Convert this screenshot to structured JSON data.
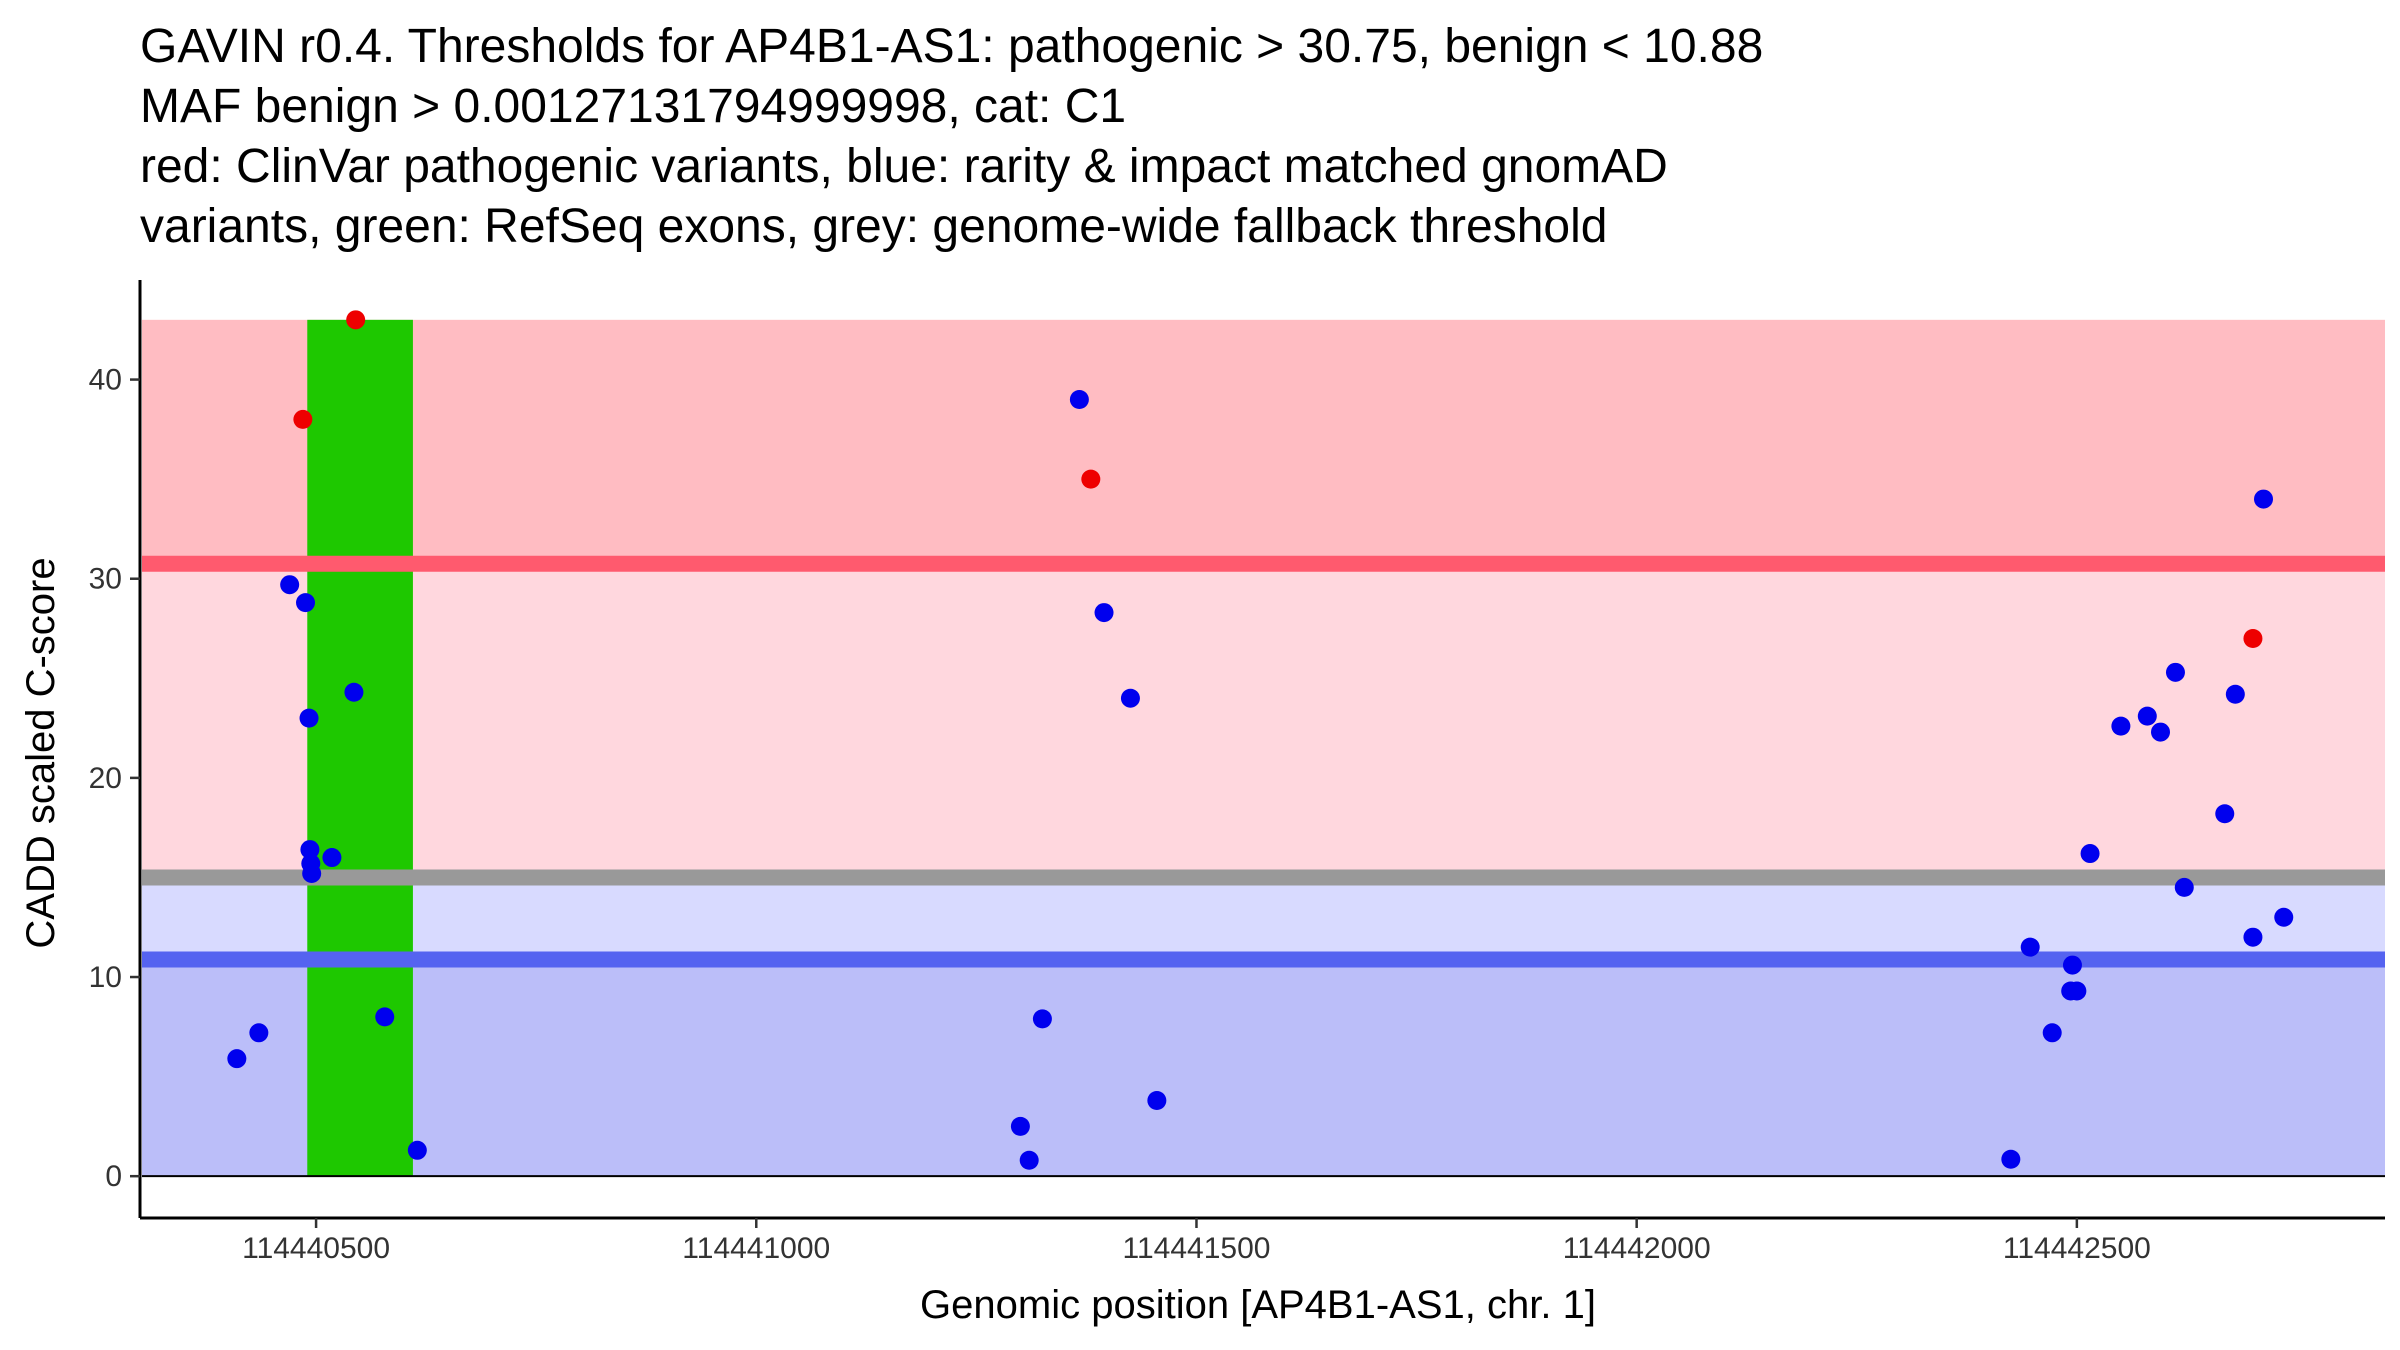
{
  "chart_data": {
    "type": "scatter",
    "title_lines": [
      "GAVIN r0.4. Thresholds for AP4B1-AS1: pathogenic > 30.75, benign < 10.88",
      "MAF benign > 0.00127131794999998, cat: C1",
      "red: ClinVar pathogenic variants, blue: rarity & impact matched gnomAD",
      "variants, green: RefSeq exons, grey: genome-wide fallback threshold"
    ],
    "xlabel": "Genomic position [AP4B1-AS1, chr. 1]",
    "ylabel": "CADD scaled C-score",
    "xlim": [
      114440300,
      114442850
    ],
    "ylim": [
      -2.1,
      45
    ],
    "x_ticks": [
      114440500,
      114441000,
      114441500,
      114442000,
      114442500
    ],
    "x_tick_labels": [
      "114440500",
      "114441000",
      "114441500",
      "114442000",
      "114442500"
    ],
    "y_ticks": [
      0,
      10,
      20,
      30,
      40
    ],
    "y_tick_labels": [
      "0",
      "10",
      "20",
      "30",
      "40"
    ],
    "grid": false,
    "thresholds": {
      "pathogenic": 30.75,
      "benign": 10.88,
      "genome_wide_fallback": 15
    },
    "regions": [
      {
        "name": "pathogenic-zone",
        "y0": 30.75,
        "y1": 43,
        "color": "#ffbcc2"
      },
      {
        "name": "uncertain-upper-zone",
        "y0": 15,
        "y1": 30.75,
        "color": "#ffd7de"
      },
      {
        "name": "uncertain-lower-zone",
        "y0": 10.88,
        "y1": 15,
        "color": "#d8daff"
      },
      {
        "name": "benign-zone",
        "y0": 0,
        "y1": 10.88,
        "color": "#bbbef9"
      }
    ],
    "threshold_lines": [
      {
        "name": "pathogenic-threshold-line",
        "y": 30.75,
        "color": "#ff5a6e"
      },
      {
        "name": "fallback-threshold-line",
        "y": 15,
        "color": "#999999"
      },
      {
        "name": "benign-threshold-line",
        "y": 10.88,
        "color": "#5563f0"
      }
    ],
    "exons": [
      {
        "start": 114440490,
        "end": 114440610,
        "color": "#1ec800"
      }
    ],
    "series": [
      {
        "name": "ClinVar pathogenic variants",
        "color": "#ee0000",
        "x": [
          114440485,
          114440545,
          114441380,
          114442700
        ],
        "y": [
          38,
          43,
          35,
          27
        ]
      },
      {
        "name": "rarity & impact matched gnomAD variants",
        "color": "#0000ee",
        "x": [
          114440410,
          114440435,
          114440470,
          114440488,
          114440492,
          114440493,
          114440494,
          114440495,
          114440518,
          114440543,
          114440578,
          114440615,
          114441300,
          114441310,
          114441325,
          114441367,
          114441395,
          114441425,
          114441455,
          114442425,
          114442447,
          114442472,
          114442493,
          114442495,
          114442500,
          114442515,
          114442550,
          114442580,
          114442595,
          114442612,
          114442622,
          114442668,
          114442680,
          114442700,
          114442712,
          114442735
        ],
        "y": [
          5.9,
          7.2,
          29.7,
          28.8,
          23,
          16.4,
          15.7,
          15.2,
          16,
          24.3,
          8,
          1.3,
          2.5,
          0.8,
          7.9,
          39,
          28.3,
          24,
          3.8,
          0.85,
          11.5,
          7.2,
          9.3,
          10.6,
          9.3,
          16.2,
          22.6,
          23.1,
          22.3,
          25.3,
          14.5,
          18.2,
          24.2,
          12,
          34,
          13
        ]
      }
    ]
  }
}
